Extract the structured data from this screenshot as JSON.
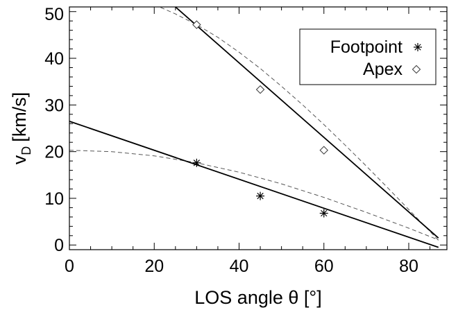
{
  "chart_data": {
    "type": "scatter",
    "xlabel": "LOS angle θ [°]",
    "ylabel": {
      "main": "v",
      "sub": "D",
      "unit": "[km/s]"
    },
    "xlim": [
      0,
      89
    ],
    "ylim": [
      -1,
      51
    ],
    "x_ticks": [
      0,
      20,
      40,
      60,
      80
    ],
    "y_ticks": [
      0,
      10,
      20,
      30,
      40,
      50
    ],
    "x_minor_step": 5,
    "y_minor_step": 2,
    "grid": false,
    "legend_position": "top-right",
    "series": [
      {
        "name": "Footpoint",
        "marker": "asterisk",
        "x": [
          30,
          45,
          60
        ],
        "y": [
          17.6,
          10.5,
          6.8
        ],
        "fit_line": {
          "x": [
            0,
            87
          ],
          "y": [
            26.5,
            -0.5
          ]
        },
        "model_curve": {
          "style": "dashed",
          "x": [
            0,
            10,
            20,
            30,
            40,
            50,
            60,
            70,
            80,
            87
          ],
          "y": [
            20.3,
            20.0,
            19.1,
            17.6,
            15.6,
            13.1,
            10.2,
            7.0,
            3.6,
            1.1
          ]
        }
      },
      {
        "name": "Apex",
        "marker": "diamond",
        "x": [
          30,
          45,
          60
        ],
        "y": [
          47.2,
          33.3,
          20.3
        ],
        "fit_line": {
          "x": [
            25,
            87
          ],
          "y": [
            51,
            1.5
          ]
        },
        "model_curve": {
          "style": "dashed",
          "x": [
            20,
            25,
            30,
            35,
            40,
            45,
            50,
            55,
            60,
            65,
            70,
            75,
            80,
            87
          ],
          "y": [
            51.5,
            49.5,
            47.2,
            44.5,
            41.3,
            37.8,
            34.0,
            30.0,
            25.8,
            21.4,
            16.9,
            12.3,
            7.6,
            1.0
          ]
        }
      }
    ]
  }
}
